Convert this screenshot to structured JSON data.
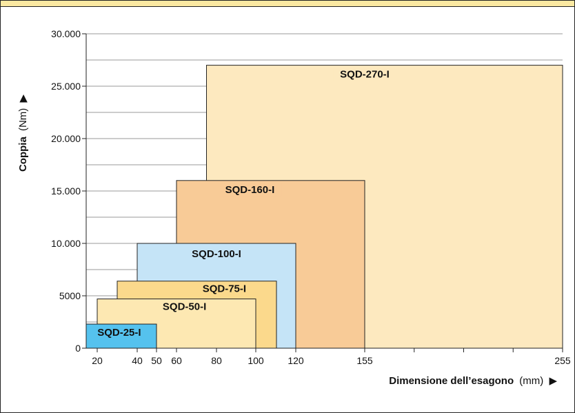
{
  "chart_data": {
    "type": "bar",
    "subtype": "nested-rectangles",
    "xlabel_bold": "Dimensione dell’esagono",
    "xlabel_unit": "(mm)",
    "xlabel_marker": "▶",
    "ylabel_bold": "Coppia",
    "ylabel_unit": "(Nm)",
    "ylabel_marker": "▶",
    "ylim": [
      0,
      30000
    ],
    "xlim": [
      15,
      255
    ],
    "y_ticks": [
      {
        "value": 0,
        "label": "0"
      },
      {
        "value": 5000,
        "label": "5000"
      },
      {
        "value": 10000,
        "label": "10.000"
      },
      {
        "value": 15000,
        "label": "15.000"
      },
      {
        "value": 20000,
        "label": "20.000"
      },
      {
        "value": 25000,
        "label": "25.000"
      },
      {
        "value": 30000,
        "label": "30.000"
      }
    ],
    "x_ticks": [
      {
        "value": 20,
        "label": "20"
      },
      {
        "value": 40,
        "label": "40"
      },
      {
        "value": 50,
        "label": "50"
      },
      {
        "value": 60,
        "label": "60"
      },
      {
        "value": 80,
        "label": "80"
      },
      {
        "value": 100,
        "label": "100"
      },
      {
        "value": 120,
        "label": "120"
      },
      {
        "value": 155,
        "label": "155"
      },
      {
        "value": 255,
        "label": "255"
      }
    ],
    "grid": true,
    "series": [
      {
        "name": "SQD-270-I",
        "x_min": 75,
        "x_max": 255,
        "y_max": 27000,
        "color": "#fde9bf"
      },
      {
        "name": "SQD-160-I",
        "x_min": 60,
        "x_max": 155,
        "y_max": 16000,
        "color": "#f8cb97"
      },
      {
        "name": "SQD-100-I",
        "x_min": 40,
        "x_max": 120,
        "y_max": 10000,
        "color": "#c5e4f7"
      },
      {
        "name": "SQD-75-I",
        "x_min": 30,
        "x_max": 110,
        "y_max": 6400,
        "color": "#fbd98c"
      },
      {
        "name": "SQD-50-I",
        "x_min": 20,
        "x_max": 100,
        "y_max": 4700,
        "color": "#fde8b2"
      },
      {
        "name": "SQD-25-I",
        "x_min": 15,
        "x_max": 50,
        "y_max": 2300,
        "color": "#55c2ee"
      }
    ]
  }
}
